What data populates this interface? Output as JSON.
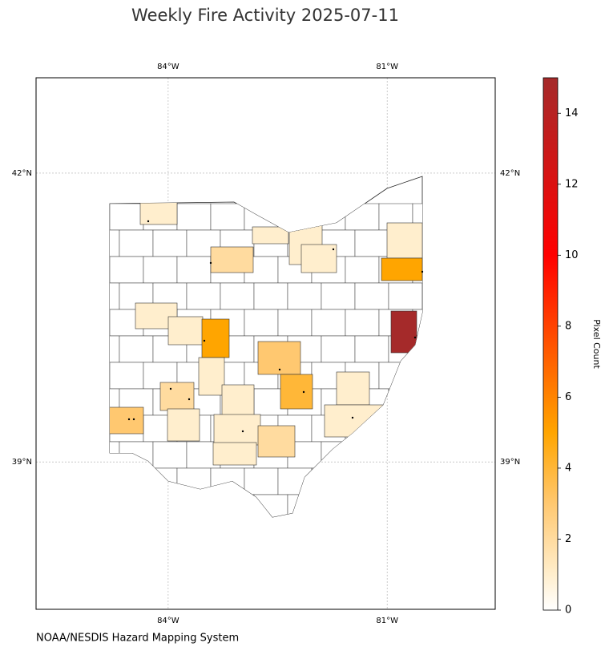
{
  "title": "Weekly Fire Activity 2025-07-11",
  "map": {
    "lonlim": [
      -85.81,
      -79.52
    ],
    "latlim": [
      37.47,
      42.99
    ],
    "lonticks": [
      {
        "value": -84,
        "label": "84°W"
      },
      {
        "value": -81,
        "label": "81°W"
      }
    ],
    "latticks": [
      {
        "value": 42,
        "label": "42°N"
      },
      {
        "value": 39,
        "label": "39°N"
      }
    ],
    "county_pixel_counts": [
      1,
      1,
      1,
      1,
      2,
      1,
      5,
      15,
      1,
      1,
      5,
      3,
      4,
      1,
      1,
      1,
      2,
      3,
      1,
      1,
      1,
      2,
      1
    ]
  },
  "colorbar": {
    "label": "Pixel Count",
    "lim": [
      0,
      15
    ],
    "ticks": [
      0,
      2,
      4,
      6,
      8,
      10,
      12,
      14
    ]
  },
  "source": "NOAA/NESDIS Hazard Mapping System"
}
